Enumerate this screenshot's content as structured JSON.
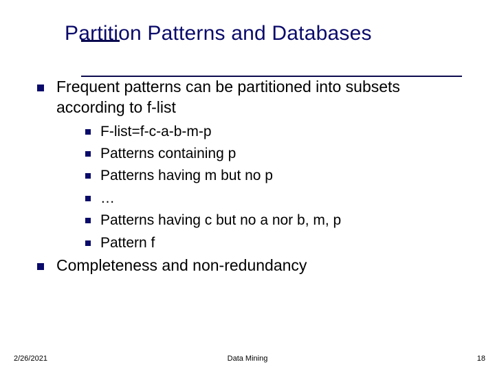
{
  "title": "Partition Patterns and Databases",
  "colors": {
    "title_color": "#0a0a6b",
    "rule_color": "#0a0a4f",
    "bullet_color": "#0a0a6b",
    "body_text": "#000000",
    "background": "#ffffff"
  },
  "typography": {
    "title_fontsize": 30,
    "lvl1_fontsize": 23,
    "lvl2_fontsize": 21,
    "footer_fontsize": 11,
    "font_family": "Verdana"
  },
  "bullets": [
    {
      "text": "Frequent patterns can be partitioned into subsets according to f-list",
      "children": [
        "F-list=f-c-a-b-m-p",
        "Patterns containing p",
        "Patterns having m but no p",
        "…",
        "Patterns having c but no a nor b, m, p",
        "Pattern f"
      ]
    },
    {
      "text": "Completeness and non-redundancy",
      "children": []
    }
  ],
  "footer": {
    "date": "2/26/2021",
    "center": "Data Mining",
    "page": "18"
  }
}
